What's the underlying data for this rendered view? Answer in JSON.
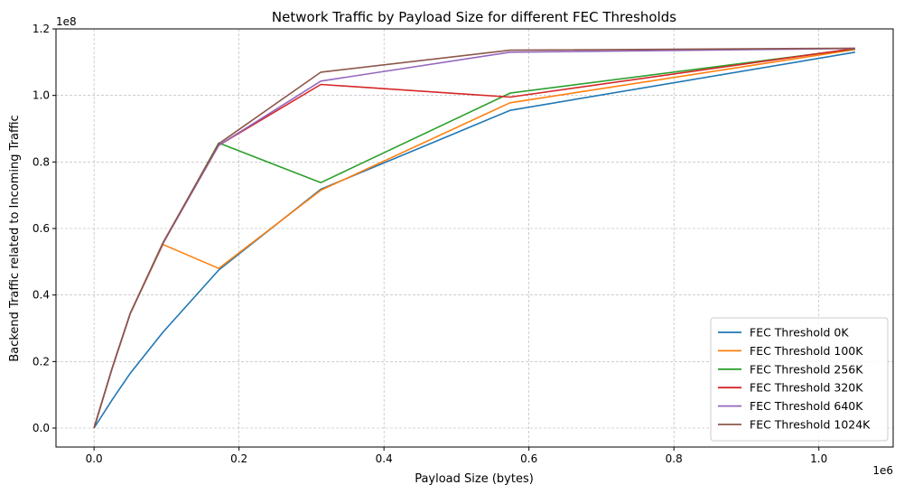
{
  "chart_data": {
    "type": "line",
    "title": "Network Traffic by Payload Size for different FEC Thresholds",
    "xlabel": "Payload Size (bytes)",
    "ylabel": "Backend Traffic related to Incoming Traffic",
    "x_offset_label": "1e6",
    "y_offset_label": "1e8",
    "xlim": [
      -0.0525,
      1.1025
    ],
    "ylim": [
      -0.057,
      1.2
    ],
    "x_ticks": [
      0.0,
      0.2,
      0.4,
      0.6,
      0.8,
      1.0
    ],
    "x_tick_labels": [
      "0.0",
      "0.2",
      "0.4",
      "0.6",
      "0.8",
      "1.0"
    ],
    "y_ticks": [
      0.0,
      0.2,
      0.4,
      0.6,
      0.8,
      1.0,
      1.2
    ],
    "y_tick_labels": [
      "0.0",
      "0.2",
      "0.4",
      "0.6",
      "0.8",
      "1.0",
      "1.2"
    ],
    "grid": true,
    "legend_position": "bottom-right",
    "x": [
      0.0,
      0.025,
      0.05,
      0.095,
      0.172,
      0.313,
      0.574,
      1.05
    ],
    "series": [
      {
        "name": "FEC Threshold 0K",
        "color": "#1f77b4",
        "values": [
          0.0,
          0.085,
          0.165,
          0.288,
          0.475,
          0.718,
          0.955,
          1.13
        ]
      },
      {
        "name": "FEC Threshold 100K",
        "color": "#ff7f0e",
        "values": [
          0.0,
          0.18,
          0.345,
          0.552,
          0.48,
          0.715,
          0.978,
          1.138
        ]
      },
      {
        "name": "FEC Threshold 256K",
        "color": "#2ca02c",
        "values": [
          0.0,
          0.18,
          0.345,
          0.555,
          0.857,
          0.738,
          1.007,
          1.14
        ]
      },
      {
        "name": "FEC Threshold 320K",
        "color": "#d62728",
        "values": [
          0.0,
          0.18,
          0.345,
          0.555,
          0.85,
          1.033,
          0.995,
          1.141
        ]
      },
      {
        "name": "FEC Threshold 640K",
        "color": "#9467bd",
        "values": [
          0.0,
          0.18,
          0.345,
          0.555,
          0.85,
          1.043,
          1.13,
          1.141
        ]
      },
      {
        "name": "FEC Threshold 1024K",
        "color": "#8c564b",
        "values": [
          0.0,
          0.18,
          0.345,
          0.557,
          0.855,
          1.07,
          1.136,
          1.142
        ]
      }
    ]
  }
}
